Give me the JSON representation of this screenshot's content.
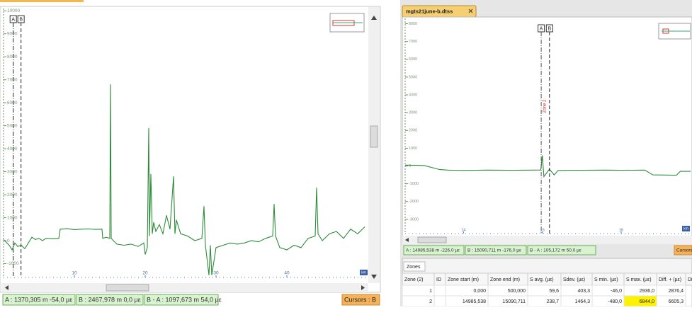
{
  "chart_data": [
    {
      "type": "line",
      "xlim": [
        0,
        51.5
      ],
      "ylim": [
        -1600,
        10100
      ],
      "xticks": [
        10,
        20,
        30,
        40
      ],
      "yticks": [
        10000,
        9000,
        8000,
        7000,
        6000,
        5000,
        4000,
        3000,
        2000,
        1000,
        0,
        -1000
      ],
      "x_label": "km",
      "x": [
        0,
        0.8,
        1.2,
        1.6,
        2,
        2.5,
        3,
        3.5,
        4,
        4.5,
        5,
        5.5,
        6,
        7,
        7.8,
        8,
        9,
        10,
        11,
        12,
        13,
        13.9,
        14,
        14.5,
        15,
        15.1,
        15.2,
        15.5,
        16,
        17,
        18,
        19,
        19.8,
        20,
        20.3,
        20.5,
        20.6,
        20.8,
        21,
        21.2,
        21.5,
        22,
        22.5,
        23,
        23.5,
        24,
        24.2,
        24.4,
        25,
        26,
        27,
        28,
        28.3,
        28.5,
        29,
        29.2,
        29.4,
        30,
        31,
        32,
        33,
        34,
        35,
        36,
        37,
        38,
        38.2,
        38.4,
        39,
        40,
        41,
        42,
        43,
        44,
        44.2,
        44.4,
        45,
        46,
        47,
        48,
        49,
        50,
        51
      ],
      "series": [
        {
          "color": "#2e8b3a",
          "values": [
            50,
            -200,
            -400,
            -100,
            -250,
            -200,
            -350,
            -100,
            150,
            50,
            100,
            0,
            100,
            80,
            100,
            500,
            520,
            480,
            500,
            510,
            490,
            500,
            100,
            150,
            100,
            6800,
            100,
            0,
            -150,
            -200,
            -150,
            -250,
            -100,
            -600,
            -300,
            4900,
            200,
            2900,
            300,
            800,
            400,
            700,
            300,
            1100,
            500,
            2800,
            300,
            900,
            300,
            200,
            0,
            100,
            1500,
            -200,
            -1500,
            -200,
            -1500,
            -300,
            -200,
            -100,
            -150,
            -100,
            0,
            -50,
            100,
            200,
            1600,
            200,
            -300,
            -400,
            -200,
            -300,
            100,
            200,
            2300,
            300,
            0,
            300,
            400,
            100,
            500,
            300,
            600
          ]
        }
      ],
      "cursors": [
        {
          "label": "A",
          "x": 1.370305
        },
        {
          "label": "B",
          "x": 2.467978
        }
      ]
    },
    {
      "type": "line",
      "xlim": [
        13.26,
        16.88
      ],
      "ylim": [
        -3800,
        8300
      ],
      "xticks": [
        14,
        15,
        16
      ],
      "yticks": [
        8000,
        7000,
        6000,
        5000,
        4000,
        3000,
        2000,
        1000,
        0,
        -1000,
        -2000,
        -3000
      ],
      "x_label": "km",
      "x": [
        13.26,
        13.5,
        13.7,
        13.8,
        14,
        14.3,
        14.6,
        14.9,
        14.98,
        15,
        15.02,
        15.09,
        15.15,
        15.2,
        15.5,
        15.8,
        16,
        16.3,
        16.4,
        16.7,
        16.75,
        16.88
      ],
      "series": [
        {
          "color": "#2e8b3a",
          "values": [
            50,
            30,
            -200,
            -230,
            -250,
            -230,
            -240,
            -230,
            -226,
            600,
            -600,
            -176,
            -500,
            -250,
            -240,
            -230,
            -240,
            -230,
            -500,
            -520,
            -300,
            -300
          ]
        }
      ],
      "cursors": [
        {
          "label": "A",
          "x": 14.985538
        },
        {
          "label": "B",
          "x": 15.090711
        }
      ],
      "zone_label": "Zone 2"
    }
  ],
  "panels": [
    {
      "status": [
        "A : 1370,305 m  -54,0 µε",
        "B : 2467,978 m  0,0 µε",
        "B - A : 1097,673 m  54,0 µε"
      ],
      "cursor_mode": "Cursors : B"
    },
    {
      "tab": "mgts21june-b.dtss",
      "status": [
        "A : 14985,538 m  -226,0 µε",
        "B : 15090,711 m  -176,0 µε",
        "B - A : 105,172 m  50,0 µε"
      ],
      "cursor_mode": "Cursors",
      "zones": {
        "tab": "Zones",
        "headers": [
          "Zone (2)",
          "ID",
          "Zone start (m)",
          "Zone end (m)",
          "S avg. (µε)",
          "Sdev. (µε)",
          "S min. (µε)",
          "S max. (µε)",
          "Diff. + (µε)",
          "Di"
        ],
        "rows": [
          [
            "1",
            null,
            "0,000",
            "500,000",
            "59,6",
            "403,3",
            "-46,0",
            "2936,0",
            "2876,4"
          ],
          [
            "2",
            null,
            "14985,538",
            "15090,711",
            "238,7",
            "1464,3",
            "-480,0",
            "6844,0",
            "6605,3"
          ]
        ]
      }
    }
  ]
}
